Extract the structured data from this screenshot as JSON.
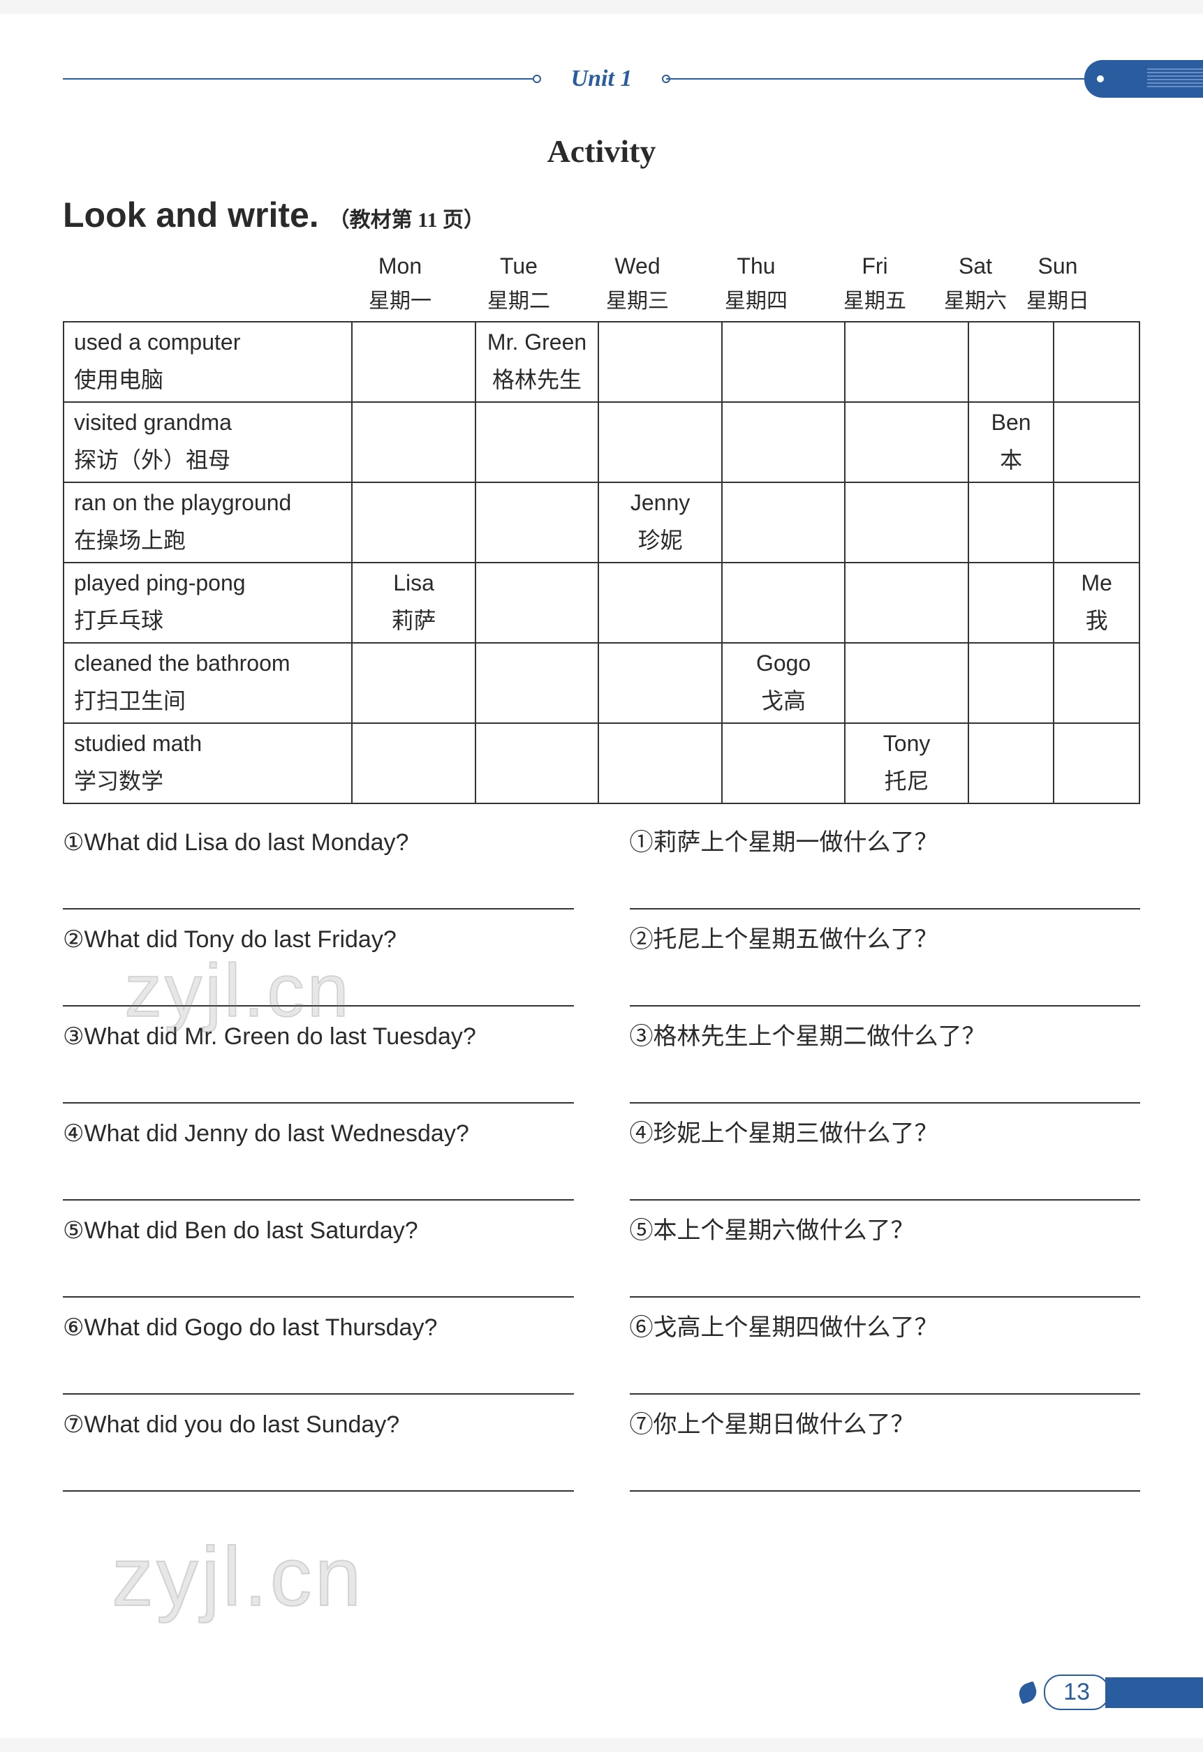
{
  "header": {
    "unit_label": "Unit 1",
    "activity_title": "Activity",
    "section_title": "Look and write.",
    "section_sub": "（教材第 11 页）"
  },
  "days": [
    {
      "en": "Mon",
      "cn": "星期一"
    },
    {
      "en": "Tue",
      "cn": "星期二"
    },
    {
      "en": "Wed",
      "cn": "星期三"
    },
    {
      "en": "Thu",
      "cn": "星期四"
    },
    {
      "en": "Fri",
      "cn": "星期五"
    },
    {
      "en": "Sat",
      "cn": "星期六"
    },
    {
      "en": "Sun",
      "cn": "星期日"
    }
  ],
  "rows": [
    {
      "activity_en": "used a computer",
      "activity_cn": "使用电脑",
      "cells": [
        null,
        {
          "en": "Mr. Green",
          "cn": "格林先生"
        },
        null,
        null,
        null,
        null,
        null
      ]
    },
    {
      "activity_en": "visited grandma",
      "activity_cn": "探访（外）祖母",
      "cells": [
        null,
        null,
        null,
        null,
        null,
        {
          "en": "Ben",
          "cn": "本"
        },
        null
      ]
    },
    {
      "activity_en": "ran on the playground",
      "activity_cn": "在操场上跑",
      "cells": [
        null,
        null,
        {
          "en": "Jenny",
          "cn": "珍妮"
        },
        null,
        null,
        null,
        null
      ]
    },
    {
      "activity_en": "played ping-pong",
      "activity_cn": "打乒乓球",
      "cells": [
        {
          "en": "Lisa",
          "cn": "莉萨"
        },
        null,
        null,
        null,
        null,
        null,
        {
          "en": "Me",
          "cn": "我"
        }
      ]
    },
    {
      "activity_en": "cleaned the bathroom",
      "activity_cn": "打扫卫生间",
      "cells": [
        null,
        null,
        null,
        {
          "en": "Gogo",
          "cn": "戈高"
        },
        null,
        null,
        null
      ]
    },
    {
      "activity_en": "studied math",
      "activity_cn": "学习数学",
      "cells": [
        null,
        null,
        null,
        null,
        {
          "en": "Tony",
          "cn": "托尼"
        },
        null,
        null
      ]
    }
  ],
  "questions": [
    {
      "num": "①",
      "en": "What did Lisa do last Monday?",
      "cn": "莉萨上个星期一做什么了？"
    },
    {
      "num": "②",
      "en": "What did Tony do last Friday?",
      "cn": "托尼上个星期五做什么了？"
    },
    {
      "num": "③",
      "en": "What did Mr. Green do last Tuesday?",
      "cn": "格林先生上个星期二做什么了？"
    },
    {
      "num": "④",
      "en": "What did Jenny do last Wednesday?",
      "cn": "珍妮上个星期三做什么了？"
    },
    {
      "num": "⑤",
      "en": "What did Ben do last Saturday?",
      "cn": "本上个星期六做什么了？"
    },
    {
      "num": "⑥",
      "en": "What did Gogo do last Thursday?",
      "cn": "戈高上个星期四做什么了？"
    },
    {
      "num": "⑦",
      "en": "What did you do last Sunday?",
      "cn": "你上个星期日做什么了？"
    }
  ],
  "watermark": "zyjl.cn",
  "page_number": "13",
  "colors": {
    "brand": "#2a5d9f",
    "text": "#2a2a2a",
    "border": "#333333",
    "bg": "#ffffff"
  }
}
